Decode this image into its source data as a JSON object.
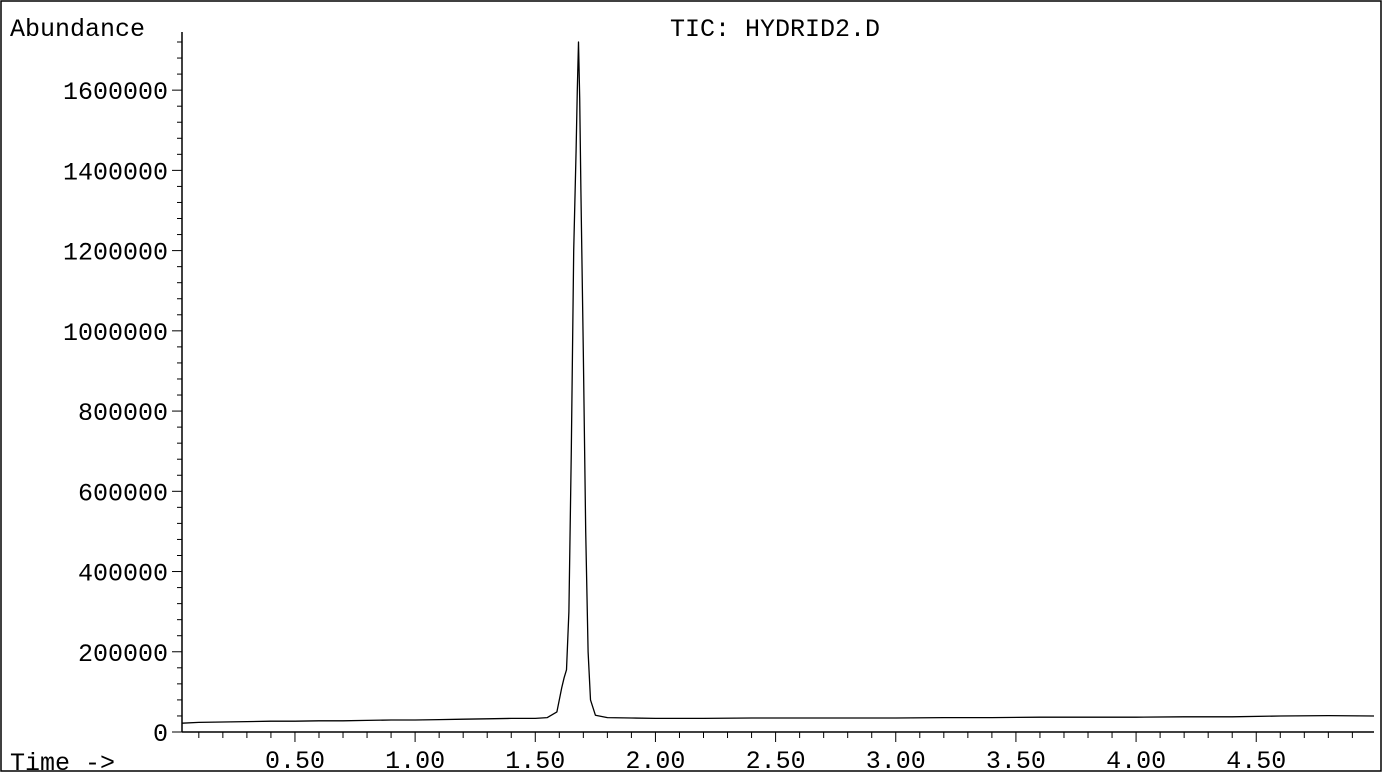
{
  "chart_data": {
    "type": "line",
    "title": "TIC: HYDRID2.D",
    "ylabel": "Abundance",
    "xlabel": "Time ->",
    "xlim": [
      0.03,
      4.99
    ],
    "ylim": [
      0,
      1720000
    ],
    "x_ticks": [
      0.5,
      1.0,
      1.5,
      2.0,
      2.5,
      3.0,
      3.5,
      4.0,
      4.5
    ],
    "x_tick_labels": [
      "0.50",
      "1.00",
      "1.50",
      "2.00",
      "2.50",
      "3.00",
      "3.50",
      "4.00",
      "4.50"
    ],
    "y_ticks": [
      0,
      200000,
      400000,
      600000,
      800000,
      1000000,
      1200000,
      1400000,
      1600000
    ],
    "y_tick_labels": [
      "0",
      "200000",
      "400000",
      "600000",
      "800000",
      "1000000",
      "1200000",
      "1400000",
      "1600000"
    ],
    "grid": false,
    "series": [
      {
        "x": [
          0.03,
          0.1,
          0.2,
          0.3,
          0.4,
          0.5,
          0.6,
          0.7,
          0.8,
          0.9,
          1.0,
          1.1,
          1.2,
          1.3,
          1.4,
          1.5,
          1.55,
          1.59,
          1.61,
          1.62,
          1.63,
          1.64,
          1.65,
          1.66,
          1.67,
          1.675,
          1.68,
          1.685,
          1.69,
          1.7,
          1.71,
          1.72,
          1.73,
          1.75,
          1.8,
          1.9,
          2.0,
          2.2,
          2.4,
          2.6,
          2.8,
          3.0,
          3.2,
          3.4,
          3.6,
          3.8,
          4.0,
          4.2,
          4.4,
          4.6,
          4.8,
          4.99
        ],
        "y": [
          22000,
          24000,
          25000,
          26000,
          27000,
          27000,
          28000,
          28000,
          29000,
          30000,
          30000,
          31000,
          32000,
          33000,
          34000,
          34000,
          36000,
          50000,
          110000,
          135000,
          155000,
          300000,
          700000,
          1200000,
          1450000,
          1600000,
          1720000,
          1580000,
          1350000,
          950000,
          500000,
          200000,
          80000,
          42000,
          36000,
          35000,
          34000,
          34000,
          35000,
          35000,
          35000,
          35000,
          36000,
          36000,
          37000,
          37000,
          37000,
          38000,
          38000,
          40000,
          41000,
          40000
        ]
      }
    ]
  }
}
